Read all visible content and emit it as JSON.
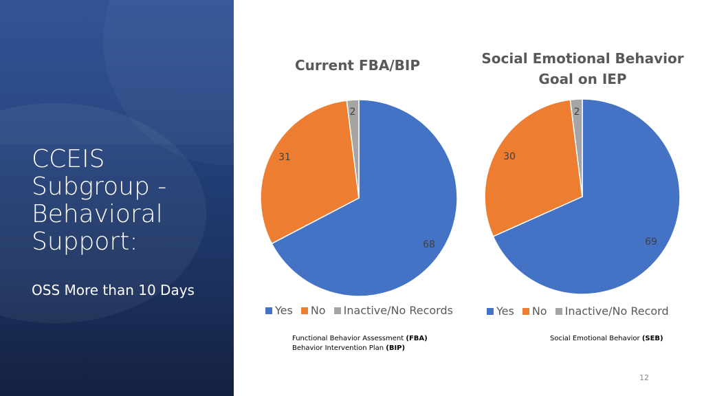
{
  "left_panel": {
    "title_lines": [
      "CCEIS",
      "Subgroup -",
      "Behavioral",
      "Support:"
    ],
    "subtitle": "OSS More than 10 Days"
  },
  "colors": {
    "yes": "#4472c4",
    "no": "#ed7d31",
    "inactive": "#a5a5a5"
  },
  "chart_data": [
    {
      "type": "pie",
      "title": "Current FBA/BIP",
      "categories": [
        "Yes",
        "No",
        "Inactive/No Records"
      ],
      "values": [
        68,
        31,
        2
      ],
      "legend_position": "bottom"
    },
    {
      "type": "pie",
      "title_lines": [
        "Social Emotional Behavior",
        "Goal on IEP"
      ],
      "categories": [
        "Yes",
        "No",
        "Inactive/No Record"
      ],
      "values": [
        69,
        30,
        2
      ],
      "legend_position": "bottom"
    }
  ],
  "footnotes": {
    "fba": {
      "text": "Functional Behavior Assessment ",
      "bold": "(FBA)"
    },
    "bip": {
      "text": "Behavior Intervention Plan ",
      "bold": "(BIP)"
    },
    "seb": {
      "text": "Social Emotional Behavior ",
      "bold": "(SEB)"
    }
  },
  "page_number": "12"
}
